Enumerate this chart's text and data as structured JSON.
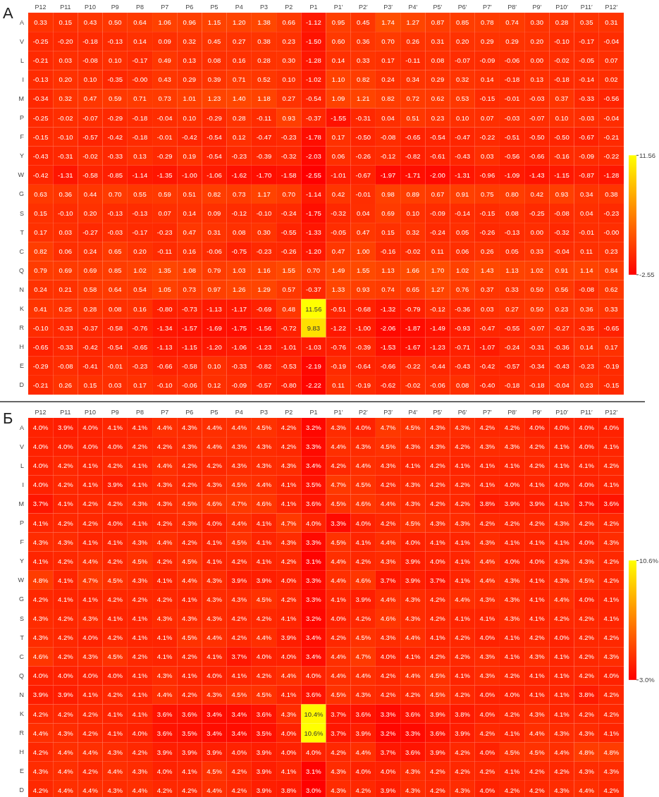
{
  "chart_data": [
    {
      "type": "heatmap",
      "title": "А",
      "data_labels": true,
      "clim": [
        -2.55,
        11.56
      ],
      "cticks": [
        -2.55,
        11.56
      ],
      "categories": [
        "P12",
        "P11",
        "P10",
        "P9",
        "P8",
        "P7",
        "P6",
        "P5",
        "P4",
        "P3",
        "P2",
        "P1",
        "P1′",
        "P2′",
        "P3′",
        "P4′",
        "P5′",
        "P6′",
        "P7′",
        "P8′",
        "P9′",
        "P10′",
        "P11′",
        "P12′"
      ],
      "y_categories": [
        "A",
        "V",
        "L",
        "I",
        "M",
        "P",
        "F",
        "Y",
        "W",
        "G",
        "S",
        "T",
        "C",
        "Q",
        "N",
        "K",
        "R",
        "H",
        "E",
        "D"
      ],
      "cells": [
        [
          0.33,
          0.15,
          0.43,
          0.5,
          0.64,
          1.06,
          0.96,
          1.15,
          1.2,
          1.38,
          0.66,
          -1.12,
          0.95,
          0.45,
          1.74,
          1.27,
          0.87,
          0.85,
          0.78,
          0.74,
          0.3,
          0.28,
          0.35,
          0.31
        ],
        [
          -0.25,
          -0.2,
          -0.18,
          -0.13,
          0.14,
          0.09,
          0.32,
          0.45,
          0.27,
          0.38,
          0.23,
          -1.5,
          0.6,
          0.36,
          0.7,
          0.26,
          0.31,
          0.2,
          0.29,
          0.29,
          0.2,
          -0.1,
          -0.17,
          -0.04
        ],
        [
          -0.21,
          0.03,
          -0.08,
          0.1,
          -0.17,
          0.49,
          0.13,
          0.08,
          0.16,
          0.28,
          0.3,
          -1.28,
          0.14,
          0.33,
          0.17,
          -0.11,
          0.08,
          -0.07,
          -0.09,
          -0.06,
          0.0,
          -0.02,
          -0.05,
          0.07
        ],
        [
          -0.13,
          0.2,
          0.1,
          -0.35,
          0,
          0.43,
          0.29,
          0.39,
          0.71,
          0.52,
          0.1,
          -1.02,
          1.1,
          0.82,
          0.24,
          0.34,
          0.29,
          0.32,
          0.14,
          -0.18,
          0.13,
          -0.18,
          -0.14,
          0.02
        ],
        [
          -0.34,
          0.32,
          0.47,
          0.59,
          0.71,
          0.73,
          1.01,
          1.23,
          1.4,
          1.18,
          0.27,
          -0.54,
          1.09,
          1.21,
          0.82,
          0.72,
          0.62,
          0.53,
          -0.15,
          -0.01,
          -0.03,
          0.37,
          -0.33,
          -0.56
        ],
        [
          -0.25,
          -0.02,
          -0.07,
          -0.29,
          -0.18,
          -0.04,
          0.1,
          -0.29,
          0.28,
          -0.11,
          0.93,
          -0.37,
          -1.55,
          -0.31,
          0.04,
          0.51,
          0.23,
          0.1,
          0.07,
          -0.03,
          -0.07,
          0.1,
          -0.03,
          -0.04
        ],
        [
          -0.15,
          -0.1,
          -0.57,
          -0.42,
          -0.18,
          -0.01,
          -0.42,
          -0.54,
          0.12,
          -0.47,
          -0.23,
          -1.78,
          0.17,
          -0.5,
          -0.08,
          -0.65,
          -0.54,
          -0.47,
          -0.22,
          -0.51,
          -0.5,
          -0.5,
          -0.67,
          -0.21
        ],
        [
          -0.43,
          -0.31,
          -0.02,
          -0.33,
          0.13,
          -0.29,
          0.19,
          -0.54,
          -0.23,
          -0.39,
          -0.32,
          -2.03,
          0.06,
          -0.26,
          -0.12,
          -0.82,
          -0.61,
          -0.43,
          0.03,
          -0.56,
          -0.66,
          -0.16,
          -0.09,
          -0.22
        ],
        [
          -0.42,
          -1.31,
          -0.58,
          -0.85,
          -1.14,
          -1.35,
          -1.0,
          -1.06,
          -1.62,
          -1.7,
          -1.58,
          -2.55,
          -1.01,
          -0.67,
          -1.97,
          -1.71,
          -2.0,
          -1.31,
          -0.96,
          -1.09,
          -1.43,
          -1.15,
          -0.87,
          -1.28
        ],
        [
          0.63,
          0.36,
          0.44,
          0.7,
          0.55,
          0.59,
          0.51,
          0.82,
          0.73,
          1.17,
          0.7,
          -1.14,
          0.42,
          -0.01,
          0.98,
          0.89,
          0.67,
          0.91,
          0.75,
          0.8,
          0.42,
          0.93,
          0.34,
          0.38
        ],
        [
          0.15,
          -0.1,
          0.2,
          -0.13,
          -0.13,
          0.07,
          0.14,
          0.09,
          -0.12,
          -0.1,
          -0.24,
          -1.75,
          -0.32,
          0.04,
          0.69,
          0.1,
          -0.09,
          -0.14,
          -0.15,
          0.08,
          -0.25,
          -0.08,
          0.04,
          -0.23
        ],
        [
          0.17,
          0.03,
          -0.27,
          -0.03,
          -0.17,
          -0.23,
          0.47,
          0.31,
          0.08,
          0.3,
          -0.55,
          -1.33,
          -0.05,
          0.47,
          0.15,
          0.32,
          -0.24,
          0.05,
          -0.26,
          -0.13,
          0.0,
          -0.32,
          -0.01,
          0
        ],
        [
          0.82,
          0.06,
          0.24,
          0.65,
          0.2,
          -0.11,
          0.16,
          -0.06,
          -0.75,
          -0.23,
          -0.26,
          -1.2,
          0.47,
          1.0,
          -0.16,
          -0.02,
          0.11,
          0.06,
          0.26,
          0.05,
          0.33,
          -0.04,
          0.11,
          0.23
        ],
        [
          0.79,
          0.69,
          0.69,
          0.85,
          1.02,
          1.35,
          1.08,
          0.79,
          1.03,
          1.16,
          1.55,
          0.7,
          1.49,
          1.55,
          1.13,
          1.66,
          1.7,
          1.02,
          1.43,
          1.13,
          1.02,
          0.91,
          1.14,
          0.84
        ],
        [
          0.24,
          0.21,
          0.58,
          0.64,
          0.54,
          1.05,
          0.73,
          0.97,
          1.26,
          1.29,
          0.57,
          -0.37,
          1.33,
          0.93,
          0.74,
          0.65,
          1.27,
          0.76,
          0.37,
          0.33,
          0.5,
          0.56,
          -0.08,
          0.62
        ],
        [
          0.41,
          0.25,
          0.28,
          0.08,
          0.16,
          -0.8,
          -0.73,
          -1.13,
          -1.17,
          -0.69,
          0.48,
          11.56,
          -0.51,
          -0.68,
          -1.32,
          -0.79,
          -0.12,
          -0.36,
          0.03,
          0.27,
          0.5,
          0.23,
          0.36,
          0.33
        ],
        [
          -0.1,
          -0.33,
          -0.37,
          -0.58,
          -0.76,
          -1.34,
          -1.57,
          -1.69,
          -1.75,
          -1.56,
          -0.72,
          9.83,
          -1.22,
          -1.0,
          -2.06,
          -1.87,
          -1.49,
          -0.93,
          -0.47,
          -0.55,
          -0.07,
          -0.27,
          -0.35,
          -0.65
        ],
        [
          -0.65,
          -0.33,
          -0.42,
          -0.54,
          -0.65,
          -1.13,
          -1.15,
          -1.2,
          -1.06,
          -1.23,
          -1.01,
          -1.03,
          -0.76,
          -0.39,
          -1.53,
          -1.67,
          -1.23,
          -0.71,
          -1.07,
          -0.24,
          -0.31,
          -0.36,
          0.14,
          0.17
        ],
        [
          -0.29,
          -0.08,
          -0.41,
          -0.01,
          -0.23,
          -0.66,
          -0.58,
          0.1,
          -0.33,
          -0.82,
          -0.53,
          -2.19,
          -0.19,
          -0.64,
          -0.66,
          -0.22,
          -0.44,
          -0.43,
          -0.42,
          -0.57,
          -0.34,
          -0.43,
          -0.23,
          -0.19
        ],
        [
          -0.21,
          0.26,
          0.15,
          0.03,
          0.17,
          -0.1,
          -0.06,
          0.12,
          -0.09,
          -0.57,
          -0.8,
          -2.22,
          0.11,
          -0.19,
          -0.62,
          -0.02,
          -0.06,
          0.08,
          -0.4,
          -0.18,
          -0.18,
          -0.04,
          0.23,
          -0.15
        ]
      ],
      "cell_labels": [
        [
          "0.33",
          "0.15",
          "0.43",
          "0.50",
          "0.64",
          "1.06",
          "0.96",
          "1.15",
          "1.20",
          "1.38",
          "0.66",
          "-1.12",
          "0.95",
          "0.45",
          "1.74",
          "1.27",
          "0.87",
          "0.85",
          "0.78",
          "0.74",
          "0.30",
          "0.28",
          "0.35",
          "0.31"
        ],
        [
          "-0.25",
          "-0.20",
          "-0.18",
          "-0.13",
          "0.14",
          "0.09",
          "0.32",
          "0.45",
          "0.27",
          "0.38",
          "0.23",
          "-1.50",
          "0.60",
          "0.36",
          "0.70",
          "0.26",
          "0.31",
          "0.20",
          "0.29",
          "0.29",
          "0.20",
          "-0.10",
          "-0.17",
          "-0.04"
        ],
        [
          "-0.21",
          "0.03",
          "-0.08",
          "0.10",
          "-0.17",
          "0.49",
          "0.13",
          "0.08",
          "0.16",
          "0.28",
          "0.30",
          "-1.28",
          "0.14",
          "0.33",
          "0.17",
          "-0.11",
          "0.08",
          "-0.07",
          "-0.09",
          "-0.06",
          "0.00",
          "-0.02",
          "-0.05",
          "0.07"
        ],
        [
          "-0.13",
          "0.20",
          "0.10",
          "-0.35",
          "-0.00",
          "0.43",
          "0.29",
          "0.39",
          "0.71",
          "0.52",
          "0.10",
          "-1.02",
          "1.10",
          "0.82",
          "0.24",
          "0.34",
          "0.29",
          "0.32",
          "0.14",
          "-0.18",
          "0.13",
          "-0.18",
          "-0.14",
          "0.02"
        ],
        [
          "-0.34",
          "0.32",
          "0.47",
          "0.59",
          "0.71",
          "0.73",
          "1.01",
          "1.23",
          "1.40",
          "1.18",
          "0.27",
          "-0.54",
          "1.09",
          "1.21",
          "0.82",
          "0.72",
          "0.62",
          "0.53",
          "-0.15",
          "-0.01",
          "-0.03",
          "0.37",
          "-0.33",
          "-0.56"
        ],
        [
          "-0.25",
          "-0.02",
          "-0.07",
          "-0.29",
          "-0.18",
          "-0.04",
          "0.10",
          "-0.29",
          "0.28",
          "-0.11",
          "0.93",
          "-0.37",
          "-1.55",
          "-0.31",
          "0.04",
          "0.51",
          "0.23",
          "0.10",
          "0.07",
          "-0.03",
          "-0.07",
          "0.10",
          "-0.03",
          "-0.04"
        ],
        [
          "-0.15",
          "-0.10",
          "-0.57",
          "-0.42",
          "-0.18",
          "-0.01",
          "-0.42",
          "-0.54",
          "0.12",
          "-0.47",
          "-0.23",
          "-1.78",
          "0.17",
          "-0.50",
          "-0.08",
          "-0.65",
          "-0.54",
          "-0.47",
          "-0.22",
          "-0.51",
          "-0.50",
          "-0.50",
          "-0.67",
          "-0.21"
        ],
        [
          "-0.43",
          "-0.31",
          "-0.02",
          "-0.33",
          "0.13",
          "-0.29",
          "0.19",
          "-0.54",
          "-0.23",
          "-0.39",
          "-0.32",
          "-2.03",
          "0.06",
          "-0.26",
          "-0.12",
          "-0.82",
          "-0.61",
          "-0.43",
          "0.03",
          "-0.56",
          "-0.66",
          "-0.16",
          "-0.09",
          "-0.22"
        ],
        [
          "-0.42",
          "-1.31",
          "-0.58",
          "-0.85",
          "-1.14",
          "-1.35",
          "-1.00",
          "-1.06",
          "-1.62",
          "-1.70",
          "-1.58",
          "-2.55",
          "-1.01",
          "-0.67",
          "-1.97",
          "-1.71",
          "-2.00",
          "-1.31",
          "-0.96",
          "-1.09",
          "-1.43",
          "-1.15",
          "-0.87",
          "-1.28"
        ],
        [
          "0.63",
          "0.36",
          "0.44",
          "0.70",
          "0.55",
          "0.59",
          "0.51",
          "0.82",
          "0.73",
          "1.17",
          "0.70",
          "-1.14",
          "0.42",
          "-0.01",
          "0.98",
          "0.89",
          "0.67",
          "0.91",
          "0.75",
          "0.80",
          "0.42",
          "0.93",
          "0.34",
          "0.38"
        ],
        [
          "0.15",
          "-0.10",
          "0.20",
          "-0.13",
          "-0.13",
          "0.07",
          "0.14",
          "0.09",
          "-0.12",
          "-0.10",
          "-0.24",
          "-1.75",
          "-0.32",
          "0.04",
          "0.69",
          "0.10",
          "-0.09",
          "-0.14",
          "-0.15",
          "0.08",
          "-0.25",
          "-0.08",
          "0.04",
          "-0.23"
        ],
        [
          "0.17",
          "0.03",
          "-0.27",
          "-0.03",
          "-0.17",
          "-0.23",
          "0.47",
          "0.31",
          "0.08",
          "0.30",
          "-0.55",
          "-1.33",
          "-0.05",
          "0.47",
          "0.15",
          "0.32",
          "-0.24",
          "0.05",
          "-0.26",
          "-0.13",
          "0.00",
          "-0.32",
          "-0.01",
          "-0.00"
        ],
        [
          "0.82",
          "0.06",
          "0.24",
          "0.65",
          "0.20",
          "-0.11",
          "0.16",
          "-0.06",
          "-0.75",
          "-0.23",
          "-0.26",
          "-1.20",
          "0.47",
          "1.00",
          "-0.16",
          "-0.02",
          "0.11",
          "0.06",
          "0.26",
          "0.05",
          "0.33",
          "-0.04",
          "0.11",
          "0.23"
        ],
        [
          "0.79",
          "0.69",
          "0.69",
          "0.85",
          "1.02",
          "1.35",
          "1.08",
          "0.79",
          "1.03",
          "1.16",
          "1.55",
          "0.70",
          "1.49",
          "1.55",
          "1.13",
          "1.66",
          "1.70",
          "1.02",
          "1.43",
          "1.13",
          "1.02",
          "0.91",
          "1.14",
          "0.84"
        ],
        [
          "0.24",
          "0.21",
          "0.58",
          "0.64",
          "0.54",
          "1.05",
          "0.73",
          "0.97",
          "1.26",
          "1.29",
          "0.57",
          "-0.37",
          "1.33",
          "0.93",
          "0.74",
          "0.65",
          "1.27",
          "0.76",
          "0.37",
          "0.33",
          "0.50",
          "0.56",
          "-0.08",
          "0.62"
        ],
        [
          "0.41",
          "0.25",
          "0.28",
          "0.08",
          "0.16",
          "-0.80",
          "-0.73",
          "-1.13",
          "-1.17",
          "-0.69",
          "0.48",
          "11.56",
          "-0.51",
          "-0.68",
          "-1.32",
          "-0.79",
          "-0.12",
          "-0.36",
          "0.03",
          "0.27",
          "0.50",
          "0.23",
          "0.36",
          "0.33"
        ],
        [
          "-0.10",
          "-0.33",
          "-0.37",
          "-0.58",
          "-0.76",
          "-1.34",
          "-1.57",
          "-1.69",
          "-1.75",
          "-1.56",
          "-0.72",
          "9.83",
          "-1.22",
          "-1.00",
          "-2.06",
          "-1.87",
          "-1.49",
          "-0.93",
          "-0.47",
          "-0.55",
          "-0.07",
          "-0.27",
          "-0.35",
          "-0.65"
        ],
        [
          "-0.65",
          "-0.33",
          "-0.42",
          "-0.54",
          "-0.65",
          "-1.13",
          "-1.15",
          "-1.20",
          "-1.06",
          "-1.23",
          "-1.01",
          "-1.03",
          "-0.76",
          "-0.39",
          "-1.53",
          "-1.67",
          "-1.23",
          "-0.71",
          "-1.07",
          "-0.24",
          "-0.31",
          "-0.36",
          "0.14",
          "0.17"
        ],
        [
          "-0.29",
          "-0.08",
          "-0.41",
          "-0.01",
          "-0.23",
          "-0.66",
          "-0.58",
          "0.10",
          "-0.33",
          "-0.82",
          "-0.53",
          "-2.19",
          "-0.19",
          "-0.64",
          "-0.66",
          "-0.22",
          "-0.44",
          "-0.43",
          "-0.42",
          "-0.57",
          "-0.34",
          "-0.43",
          "-0.23",
          "-0.19"
        ],
        [
          "-0.21",
          "0.26",
          "0.15",
          "0.03",
          "0.17",
          "-0.10",
          "-0.06",
          "0.12",
          "-0.09",
          "-0.57",
          "-0.80",
          "-2.22",
          "0.11",
          "-0.19",
          "-0.62",
          "-0.02",
          "-0.06",
          "0.08",
          "-0.40",
          "-0.18",
          "-0.18",
          "-0.04",
          "0.23",
          "-0.15"
        ]
      ]
    },
    {
      "type": "heatmap",
      "title": "Б",
      "clim": [
        3.0,
        10.6
      ],
      "cticks": [
        {
          "value": 3.0,
          "label": "3.0%"
        },
        {
          "value": 10.6,
          "label": "10.6%"
        }
      ],
      "categories": [
        "P12",
        "P11",
        "P10",
        "P9",
        "P8",
        "P7",
        "P6",
        "P5",
        "P4",
        "P3",
        "P2",
        "P1",
        "P1′",
        "P2′",
        "P3′",
        "P4′",
        "P5′",
        "P6′",
        "P7′",
        "P8′",
        "P9′",
        "P10′",
        "P11′",
        "P12′"
      ],
      "y_categories": [
        "A",
        "V",
        "L",
        "I",
        "M",
        "P",
        "F",
        "Y",
        "W",
        "G",
        "S",
        "T",
        "C",
        "Q",
        "N",
        "K",
        "R",
        "H",
        "E",
        "D"
      ],
      "cells": [
        [
          4.0,
          3.9,
          4.0,
          4.1,
          4.1,
          4.4,
          4.3,
          4.4,
          4.4,
          4.5,
          4.2,
          3.2,
          4.3,
          4.0,
          4.7,
          4.5,
          4.3,
          4.3,
          4.2,
          4.2,
          4.0,
          4.0,
          4.0,
          4.0
        ],
        [
          4.0,
          4.0,
          4.0,
          4.0,
          4.2,
          4.2,
          4.3,
          4.4,
          4.3,
          4.3,
          4.2,
          3.3,
          4.4,
          4.3,
          4.5,
          4.3,
          4.3,
          4.2,
          4.3,
          4.3,
          4.2,
          4.1,
          4.0,
          4.1
        ],
        [
          4.0,
          4.2,
          4.1,
          4.2,
          4.1,
          4.4,
          4.2,
          4.2,
          4.3,
          4.3,
          4.3,
          3.4,
          4.2,
          4.4,
          4.3,
          4.1,
          4.2,
          4.1,
          4.1,
          4.1,
          4.2,
          4.1,
          4.1,
          4.2
        ],
        [
          4.0,
          4.2,
          4.1,
          3.9,
          4.1,
          4.3,
          4.2,
          4.3,
          4.5,
          4.4,
          4.1,
          3.5,
          4.7,
          4.5,
          4.2,
          4.3,
          4.2,
          4.2,
          4.1,
          4.0,
          4.1,
          4.0,
          4.0,
          4.1
        ],
        [
          3.7,
          4.1,
          4.2,
          4.2,
          4.3,
          4.3,
          4.5,
          4.6,
          4.7,
          4.6,
          4.1,
          3.6,
          4.5,
          4.6,
          4.4,
          4.3,
          4.2,
          4.2,
          3.8,
          3.9,
          3.9,
          4.1,
          3.7,
          3.6
        ],
        [
          4.1,
          4.2,
          4.2,
          4.0,
          4.1,
          4.2,
          4.3,
          4.0,
          4.4,
          4.1,
          4.7,
          4.0,
          3.3,
          4.0,
          4.2,
          4.5,
          4.3,
          4.3,
          4.2,
          4.2,
          4.2,
          4.3,
          4.2,
          4.2
        ],
        [
          4.3,
          4.3,
          4.1,
          4.1,
          4.3,
          4.4,
          4.2,
          4.1,
          4.5,
          4.1,
          4.3,
          3.3,
          4.5,
          4.1,
          4.4,
          4.0,
          4.1,
          4.1,
          4.3,
          4.1,
          4.1,
          4.1,
          4.0,
          4.3
        ],
        [
          4.1,
          4.2,
          4.4,
          4.2,
          4.5,
          4.2,
          4.5,
          4.1,
          4.2,
          4.1,
          4.2,
          3.1,
          4.4,
          4.2,
          4.3,
          3.9,
          4.0,
          4.1,
          4.4,
          4.0,
          4.0,
          4.3,
          4.3,
          4.2
        ],
        [
          4.8,
          4.1,
          4.7,
          4.5,
          4.3,
          4.1,
          4.4,
          4.3,
          3.9,
          3.9,
          4.0,
          3.3,
          4.4,
          4.6,
          3.7,
          3.9,
          3.7,
          4.1,
          4.4,
          4.3,
          4.1,
          4.3,
          4.5,
          4.2
        ],
        [
          4.2,
          4.1,
          4.1,
          4.2,
          4.2,
          4.2,
          4.1,
          4.3,
          4.3,
          4.5,
          4.2,
          3.3,
          4.1,
          3.9,
          4.4,
          4.3,
          4.2,
          4.4,
          4.3,
          4.3,
          4.1,
          4.4,
          4.0,
          4.1
        ],
        [
          4.3,
          4.2,
          4.3,
          4.1,
          4.1,
          4.3,
          4.3,
          4.3,
          4.2,
          4.2,
          4.1,
          3.2,
          4.0,
          4.2,
          4.6,
          4.3,
          4.2,
          4.1,
          4.1,
          4.3,
          4.1,
          4.2,
          4.2,
          4.1
        ],
        [
          4.3,
          4.2,
          4.0,
          4.2,
          4.1,
          4.1,
          4.5,
          4.4,
          4.2,
          4.4,
          3.9,
          3.4,
          4.2,
          4.5,
          4.3,
          4.4,
          4.1,
          4.2,
          4.0,
          4.1,
          4.2,
          4.0,
          4.2,
          4.2
        ],
        [
          4.6,
          4.2,
          4.3,
          4.5,
          4.2,
          4.1,
          4.2,
          4.1,
          3.7,
          4.0,
          4.0,
          3.4,
          4.4,
          4.7,
          4.0,
          4.1,
          4.2,
          4.2,
          4.3,
          4.1,
          4.3,
          4.1,
          4.2,
          4.3
        ],
        [
          4.0,
          4.0,
          4.0,
          4.0,
          4.1,
          4.3,
          4.1,
          4.0,
          4.1,
          4.2,
          4.4,
          4.0,
          4.4,
          4.4,
          4.2,
          4.4,
          4.5,
          4.1,
          4.3,
          4.2,
          4.1,
          4.1,
          4.2,
          4.0
        ],
        [
          3.9,
          3.9,
          4.1,
          4.2,
          4.1,
          4.4,
          4.2,
          4.3,
          4.5,
          4.5,
          4.1,
          3.6,
          4.5,
          4.3,
          4.2,
          4.2,
          4.5,
          4.2,
          4.0,
          4.0,
          4.1,
          4.1,
          3.8,
          4.2
        ],
        [
          4.2,
          4.2,
          4.2,
          4.1,
          4.1,
          3.6,
          3.6,
          3.4,
          3.4,
          3.6,
          4.3,
          10.4,
          3.7,
          3.6,
          3.3,
          3.6,
          3.9,
          3.8,
          4.0,
          4.2,
          4.3,
          4.1,
          4.2,
          4.2
        ],
        [
          4.4,
          4.3,
          4.2,
          4.1,
          4.0,
          3.6,
          3.5,
          3.4,
          3.4,
          3.5,
          4.0,
          10.6,
          3.7,
          3.9,
          3.2,
          3.3,
          3.6,
          3.9,
          4.2,
          4.1,
          4.4,
          4.3,
          4.3,
          4.1
        ],
        [
          4.2,
          4.4,
          4.4,
          4.3,
          4.2,
          3.9,
          3.9,
          3.9,
          4.0,
          3.9,
          4.0,
          4.0,
          4.2,
          4.4,
          3.7,
          3.6,
          3.9,
          4.2,
          4.0,
          4.5,
          4.5,
          4.4,
          4.8,
          4.8
        ],
        [
          4.3,
          4.4,
          4.2,
          4.4,
          4.3,
          4.0,
          4.1,
          4.5,
          4.2,
          3.9,
          4.1,
          3.1,
          4.3,
          4.0,
          4.0,
          4.3,
          4.2,
          4.2,
          4.2,
          4.1,
          4.2,
          4.2,
          4.3,
          4.3
        ],
        [
          4.2,
          4.4,
          4.4,
          4.3,
          4.4,
          4.2,
          4.2,
          4.4,
          4.2,
          3.9,
          3.8,
          3.0,
          4.3,
          4.2,
          3.9,
          4.3,
          4.2,
          4.3,
          4.0,
          4.2,
          4.2,
          4.3,
          4.4,
          4.2
        ]
      ],
      "cell_labels": [
        [
          "4.0%",
          "3.9%",
          "4.0%",
          "4.1%",
          "4.1%",
          "4.4%",
          "4.3%",
          "4.4%",
          "4.4%",
          "4.5%",
          "4.2%",
          "3.2%",
          "4.3%",
          "4.0%",
          "4.7%",
          "4.5%",
          "4.3%",
          "4.3%",
          "4.2%",
          "4.2%",
          "4.0%",
          "4.0%",
          "4.0%",
          "4.0%"
        ],
        [
          "4.0%",
          "4.0%",
          "4.0%",
          "4.0%",
          "4.2%",
          "4.2%",
          "4.3%",
          "4.4%",
          "4.3%",
          "4.3%",
          "4.2%",
          "3.3%",
          "4.4%",
          "4.3%",
          "4.5%",
          "4.3%",
          "4.3%",
          "4.2%",
          "4.3%",
          "4.3%",
          "4.2%",
          "4.1%",
          "4.0%",
          "4.1%"
        ],
        [
          "4.0%",
          "4.2%",
          "4.1%",
          "4.2%",
          "4.1%",
          "4.4%",
          "4.2%",
          "4.2%",
          "4.3%",
          "4.3%",
          "4.3%",
          "3.4%",
          "4.2%",
          "4.4%",
          "4.3%",
          "4.1%",
          "4.2%",
          "4.1%",
          "4.1%",
          "4.1%",
          "4.2%",
          "4.1%",
          "4.1%",
          "4.2%"
        ],
        [
          "4.0%",
          "4.2%",
          "4.1%",
          "3.9%",
          "4.1%",
          "4.3%",
          "4.2%",
          "4.3%",
          "4.5%",
          "4.4%",
          "4.1%",
          "3.5%",
          "4.7%",
          "4.5%",
          "4.2%",
          "4.3%",
          "4.2%",
          "4.2%",
          "4.1%",
          "4.0%",
          "4.1%",
          "4.0%",
          "4.0%",
          "4.1%"
        ],
        [
          "3.7%",
          "4.1%",
          "4.2%",
          "4.2%",
          "4.3%",
          "4.3%",
          "4.5%",
          "4.6%",
          "4.7%",
          "4.6%",
          "4.1%",
          "3.6%",
          "4.5%",
          "4.6%",
          "4.4%",
          "4.3%",
          "4.2%",
          "4.2%",
          "3.8%",
          "3.9%",
          "3.9%",
          "4.1%",
          "3.7%",
          "3.6%"
        ],
        [
          "4.1%",
          "4.2%",
          "4.2%",
          "4.0%",
          "4.1%",
          "4.2%",
          "4.3%",
          "4.0%",
          "4.4%",
          "4.1%",
          "4.7%",
          "4.0%",
          "3.3%",
          "4.0%",
          "4.2%",
          "4.5%",
          "4.3%",
          "4.3%",
          "4.2%",
          "4.2%",
          "4.2%",
          "4.3%",
          "4.2%",
          "4.2%"
        ],
        [
          "4.3%",
          "4.3%",
          "4.1%",
          "4.1%",
          "4.3%",
          "4.4%",
          "4.2%",
          "4.1%",
          "4.5%",
          "4.1%",
          "4.3%",
          "3.3%",
          "4.5%",
          "4.1%",
          "4.4%",
          "4.0%",
          "4.1%",
          "4.1%",
          "4.3%",
          "4.1%",
          "4.1%",
          "4.1%",
          "4.0%",
          "4.3%"
        ],
        [
          "4.1%",
          "4.2%",
          "4.4%",
          "4.2%",
          "4.5%",
          "4.2%",
          "4.5%",
          "4.1%",
          "4.2%",
          "4.1%",
          "4.2%",
          "3.1%",
          "4.4%",
          "4.2%",
          "4.3%",
          "3.9%",
          "4.0%",
          "4.1%",
          "4.4%",
          "4.0%",
          "4.0%",
          "4.3%",
          "4.3%",
          "4.2%"
        ],
        [
          "4.8%",
          "4.1%",
          "4.7%",
          "4.5%",
          "4.3%",
          "4.1%",
          "4.4%",
          "4.3%",
          "3.9%",
          "3.9%",
          "4.0%",
          "3.3%",
          "4.4%",
          "4.6%",
          "3.7%",
          "3.9%",
          "3.7%",
          "4.1%",
          "4.4%",
          "4.3%",
          "4.1%",
          "4.3%",
          "4.5%",
          "4.2%"
        ],
        [
          "4.2%",
          "4.1%",
          "4.1%",
          "4.2%",
          "4.2%",
          "4.2%",
          "4.1%",
          "4.3%",
          "4.3%",
          "4.5%",
          "4.2%",
          "3.3%",
          "4.1%",
          "3.9%",
          "4.4%",
          "4.3%",
          "4.2%",
          "4.4%",
          "4.3%",
          "4.3%",
          "4.1%",
          "4.4%",
          "4.0%",
          "4.1%"
        ],
        [
          "4.3%",
          "4.2%",
          "4.3%",
          "4.1%",
          "4.1%",
          "4.3%",
          "4.3%",
          "4.3%",
          "4.2%",
          "4.2%",
          "4.1%",
          "3.2%",
          "4.0%",
          "4.2%",
          "4.6%",
          "4.3%",
          "4.2%",
          "4.1%",
          "4.1%",
          "4.3%",
          "4.1%",
          "4.2%",
          "4.2%",
          "4.1%"
        ],
        [
          "4.3%",
          "4.2%",
          "4.0%",
          "4.2%",
          "4.1%",
          "4.1%",
          "4.5%",
          "4.4%",
          "4.2%",
          "4.4%",
          "3.9%",
          "3.4%",
          "4.2%",
          "4.5%",
          "4.3%",
          "4.4%",
          "4.1%",
          "4.2%",
          "4.0%",
          "4.1%",
          "4.2%",
          "4.0%",
          "4.2%",
          "4.2%"
        ],
        [
          "4.6%",
          "4.2%",
          "4.3%",
          "4.5%",
          "4.2%",
          "4.1%",
          "4.2%",
          "4.1%",
          "3.7%",
          "4.0%",
          "4.0%",
          "3.4%",
          "4.4%",
          "4.7%",
          "4.0%",
          "4.1%",
          "4.2%",
          "4.2%",
          "4.3%",
          "4.1%",
          "4.3%",
          "4.1%",
          "4.2%",
          "4.3%"
        ],
        [
          "4.0%",
          "4.0%",
          "4.0%",
          "4.0%",
          "4.1%",
          "4.3%",
          "4.1%",
          "4.0%",
          "4.1%",
          "4.2%",
          "4.4%",
          "4.0%",
          "4.4%",
          "4.4%",
          "4.2%",
          "4.4%",
          "4.5%",
          "4.1%",
          "4.3%",
          "4.2%",
          "4.1%",
          "4.1%",
          "4.2%",
          "4.0%"
        ],
        [
          "3.9%",
          "3.9%",
          "4.1%",
          "4.2%",
          "4.1%",
          "4.4%",
          "4.2%",
          "4.3%",
          "4.5%",
          "4.5%",
          "4.1%",
          "3.6%",
          "4.5%",
          "4.3%",
          "4.2%",
          "4.2%",
          "4.5%",
          "4.2%",
          "4.0%",
          "4.0%",
          "4.1%",
          "4.1%",
          "3.8%",
          "4.2%"
        ],
        [
          "4.2%",
          "4.2%",
          "4.2%",
          "4.1%",
          "4.1%",
          "3.6%",
          "3.6%",
          "3.4%",
          "3.4%",
          "3.6%",
          "4.3%",
          "10.4%",
          "3.7%",
          "3.6%",
          "3.3%",
          "3.6%",
          "3.9%",
          "3.8%",
          "4.0%",
          "4.2%",
          "4.3%",
          "4.1%",
          "4.2%",
          "4.2%"
        ],
        [
          "4.4%",
          "4.3%",
          "4.2%",
          "4.1%",
          "4.0%",
          "3.6%",
          "3.5%",
          "3.4%",
          "3.4%",
          "3.5%",
          "4.0%",
          "10.6%",
          "3.7%",
          "3.9%",
          "3.2%",
          "3.3%",
          "3.6%",
          "3.9%",
          "4.2%",
          "4.1%",
          "4.4%",
          "4.3%",
          "4.3%",
          "4.1%"
        ],
        [
          "4.2%",
          "4.4%",
          "4.4%",
          "4.3%",
          "4.2%",
          "3.9%",
          "3.9%",
          "3.9%",
          "4.0%",
          "3.9%",
          "4.0%",
          "4.0%",
          "4.2%",
          "4.4%",
          "3.7%",
          "3.6%",
          "3.9%",
          "4.2%",
          "4.0%",
          "4.5%",
          "4.5%",
          "4.4%",
          "4.8%",
          "4.8%"
        ],
        [
          "4.3%",
          "4.4%",
          "4.2%",
          "4.4%",
          "4.3%",
          "4.0%",
          "4.1%",
          "4.5%",
          "4.2%",
          "3.9%",
          "4.1%",
          "3.1%",
          "4.3%",
          "4.0%",
          "4.0%",
          "4.3%",
          "4.2%",
          "4.2%",
          "4.2%",
          "4.1%",
          "4.2%",
          "4.2%",
          "4.3%",
          "4.3%"
        ],
        [
          "4.2%",
          "4.4%",
          "4.4%",
          "4.3%",
          "4.4%",
          "4.2%",
          "4.2%",
          "4.4%",
          "4.2%",
          "3.9%",
          "3.8%",
          "3.0%",
          "4.3%",
          "4.2%",
          "3.9%",
          "4.3%",
          "4.2%",
          "4.3%",
          "4.0%",
          "4.2%",
          "4.2%",
          "4.3%",
          "4.4%",
          "4.2%"
        ]
      ]
    }
  ]
}
